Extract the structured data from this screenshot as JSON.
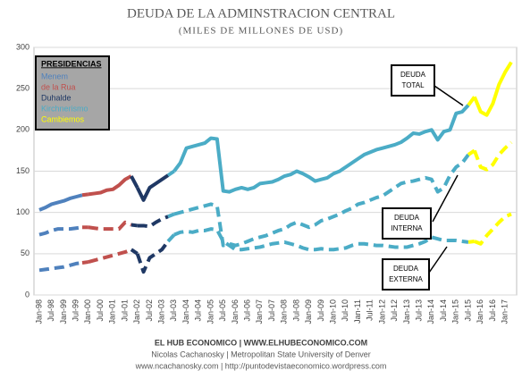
{
  "chart_data": {
    "type": "line",
    "title": "DEUDA DE LA ADMINSTRACION CENTRAL",
    "subtitle": "(MILES DE MILLONES DE USD)",
    "legend_title": "PRESIDENCIAS",
    "legend_position": "upper left",
    "presidencies": [
      {
        "name": "Menem",
        "color": "#4f81bd"
      },
      {
        "name": "de la Rua",
        "color": "#c0504d"
      },
      {
        "name": "Duhalde",
        "color": "#1f3864"
      },
      {
        "name": "Kirchnerismo",
        "color": "#4bacc6"
      },
      {
        "name": "Cambiemos",
        "color": "#ffff00"
      }
    ],
    "point_presidency": [
      "Menem",
      "Menem",
      "Menem",
      "Menem",
      "Menem",
      "Menem",
      "Menem",
      "Menem",
      "de la Rua",
      "de la Rua",
      "de la Rua",
      "de la Rua",
      "de la Rua",
      "de la Rua",
      "de la Rua",
      "de la Rua",
      "Duhalde",
      "Duhalde",
      "Duhalde",
      "Duhalde",
      "Duhalde",
      "Duhalde",
      "Kirchnerismo",
      "Kirchnerismo",
      "Kirchnerismo",
      "Kirchnerismo",
      "Kirchnerismo",
      "Kirchnerismo",
      "Kirchnerismo",
      "Kirchnerismo",
      "Kirchnerismo",
      "Kirchnerismo",
      "Kirchnerismo",
      "Kirchnerismo",
      "Kirchnerismo",
      "Kirchnerismo",
      "Kirchnerismo",
      "Kirchnerismo",
      "Kirchnerismo",
      "Kirchnerismo",
      "Kirchnerismo",
      "Kirchnerismo",
      "Kirchnerismo",
      "Kirchnerismo",
      "Kirchnerismo",
      "Kirchnerismo",
      "Kirchnerismo",
      "Kirchnerismo",
      "Kirchnerismo",
      "Kirchnerismo",
      "Kirchnerismo",
      "Kirchnerismo",
      "Kirchnerismo",
      "Kirchnerismo",
      "Kirchnerismo",
      "Kirchnerismo",
      "Kirchnerismo",
      "Kirchnerismo",
      "Kirchnerismo",
      "Kirchnerismo",
      "Kirchnerismo",
      "Kirchnerismo",
      "Kirchnerismo",
      "Kirchnerismo",
      "Kirchnerismo",
      "Kirchnerismo",
      "Kirchnerismo",
      "Kirchnerismo",
      "Kirchnerismo",
      "Kirchnerismo",
      "Kirchnerismo",
      "Cambiemos",
      "Cambiemos",
      "Cambiemos",
      "Cambiemos",
      "Cambiemos",
      "Cambiemos",
      "Cambiemos"
    ],
    "categories": [
      "Jan-98",
      null,
      "Jul-98",
      null,
      "Jan-99",
      null,
      "Jul-99",
      null,
      "Jan-00",
      null,
      "Jul-00",
      null,
      "Jan-01",
      null,
      "Jul-01",
      null,
      "Jan-02",
      null,
      "Jul-02",
      null,
      "Jan-03",
      null,
      "Jul-03",
      null,
      "Jan-04",
      null,
      "Jul-04",
      null,
      "Jan-05",
      null,
      "Jul-05",
      null,
      "Jan-06",
      null,
      "Jul-06",
      null,
      "Jan-07",
      null,
      "Jul-07",
      null,
      "Jan-08",
      null,
      "Jul-08",
      null,
      "Jan-09",
      null,
      "Jul-09",
      null,
      "Jan-10",
      null,
      "Jul-10",
      null,
      "Jan-11",
      null,
      "Jul-11",
      null,
      "Jan-12",
      null,
      "Jul-12",
      null,
      "Jan-13",
      null,
      "Jul-13",
      null,
      "Jan-14",
      null,
      "Jul-14",
      null,
      "Jan-15",
      null,
      "Jul-15",
      null,
      "Jan-16",
      null,
      "Jul-16",
      null,
      "Jan-17",
      null
    ],
    "series": [
      {
        "name": "DEUDA TOTAL",
        "dashed": false,
        "values": [
          103,
          106,
          110,
          112,
          114,
          117,
          119,
          121,
          122,
          123,
          124,
          127,
          128,
          133,
          140,
          144,
          130,
          115,
          130,
          135,
          140,
          145,
          150,
          160,
          178,
          180,
          182,
          184,
          190,
          189,
          126,
          125,
          128,
          130,
          128,
          130,
          135,
          136,
          137,
          140,
          144,
          146,
          150,
          147,
          143,
          138,
          140,
          142,
          147,
          150,
          155,
          160,
          165,
          170,
          173,
          176,
          178,
          180,
          182,
          185,
          190,
          196,
          195,
          198,
          200,
          188,
          198,
          200,
          220,
          222,
          230,
          240,
          222,
          218,
          232,
          255,
          270,
          282
        ]
      },
      {
        "name": "DEUDA INTERNA",
        "dashed": true,
        "values": [
          73,
          75,
          78,
          80,
          80,
          80,
          81,
          82,
          82,
          81,
          80,
          80,
          80,
          80,
          88,
          85,
          84,
          84,
          83,
          88,
          92,
          95,
          98,
          100,
          102,
          104,
          106,
          108,
          110,
          108,
          60,
          62,
          60,
          62,
          65,
          68,
          70,
          72,
          75,
          78,
          80,
          85,
          88,
          85,
          82,
          85,
          90,
          92,
          95,
          98,
          102,
          105,
          110,
          112,
          115,
          118,
          120,
          125,
          130,
          135,
          137,
          138,
          140,
          142,
          140,
          125,
          130,
          145,
          155,
          160,
          170,
          175,
          155,
          152,
          158,
          170,
          178,
          185
        ]
      },
      {
        "name": "DEUDA EXTERNA",
        "dashed": true,
        "values": [
          30,
          31,
          32,
          33,
          34,
          36,
          38,
          39,
          40,
          42,
          44,
          46,
          48,
          50,
          52,
          55,
          50,
          28,
          45,
          50,
          55,
          65,
          73,
          76,
          77,
          76,
          78,
          78,
          80,
          79,
          65,
          60,
          55,
          55,
          56,
          57,
          58,
          60,
          62,
          63,
          64,
          62,
          60,
          57,
          55,
          55,
          56,
          55,
          55,
          56,
          57,
          60,
          62,
          62,
          61,
          60,
          60,
          59,
          58,
          58,
          58,
          60,
          62,
          65,
          70,
          68,
          66,
          66,
          66,
          65,
          64,
          65,
          62,
          72,
          80,
          88,
          95,
          98
        ]
      }
    ],
    "ylim": [
      0,
      300
    ],
    "yticks": [
      0,
      50,
      100,
      150,
      200,
      250,
      300
    ],
    "grid": true,
    "footer": [
      "EL HUB ECONOMICO | WWW.ELHUBECONOMICO.COM",
      "Nicolas Cachanosky | Metropolitan State University of Denver",
      "www.ncachanosky.com | http://puntodevistaeconomico.wordpress.com"
    ]
  }
}
